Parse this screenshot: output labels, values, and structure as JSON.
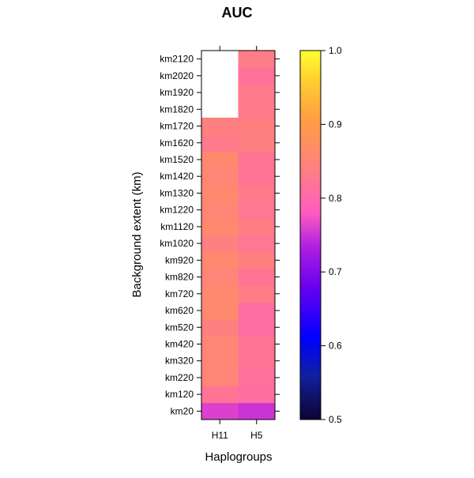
{
  "chart_data": {
    "type": "heatmap",
    "title": "AUC",
    "xlabel": "Haplogroups",
    "ylabel": "Background extent (km)",
    "x_categories": [
      "H11",
      "H5"
    ],
    "y_categories": [
      "km20",
      "km120",
      "km220",
      "km320",
      "km420",
      "km520",
      "km620",
      "km720",
      "km820",
      "km920",
      "km1020",
      "km1120",
      "km1220",
      "km1320",
      "km1420",
      "km1520",
      "km1620",
      "km1720",
      "km1820",
      "km1920",
      "km2020",
      "km2120"
    ],
    "series": [
      {
        "name": "H11",
        "values": [
          0.76,
          0.82,
          0.85,
          0.85,
          0.85,
          0.84,
          0.86,
          0.86,
          0.85,
          0.86,
          0.84,
          0.86,
          0.85,
          0.86,
          0.85,
          0.86,
          0.83,
          0.84,
          null,
          null,
          null,
          null
        ]
      },
      {
        "name": "H5",
        "values": [
          0.75,
          0.81,
          0.815,
          0.82,
          0.82,
          0.81,
          0.81,
          0.835,
          0.82,
          0.84,
          0.825,
          0.835,
          0.825,
          0.83,
          0.82,
          0.82,
          0.84,
          0.84,
          0.83,
          0.83,
          0.815,
          0.835
        ]
      }
    ],
    "colorbar": {
      "min": 0.5,
      "max": 1.0,
      "ticks": [
        "0.5",
        "0.6",
        "0.7",
        "0.8",
        "0.9",
        "1.0"
      ]
    },
    "grid": false,
    "legend_position": "right"
  }
}
